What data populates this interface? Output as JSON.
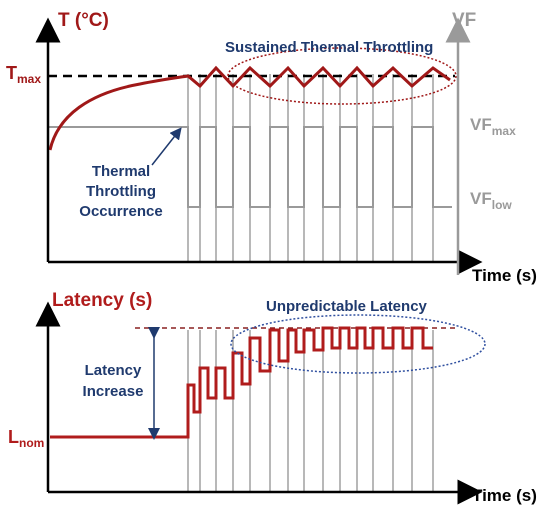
{
  "colors": {
    "temperature": "#a01818",
    "latency": "#b01c1c",
    "vf": "#9a9a9a",
    "throttle_lines": "#707070",
    "annotation_text": "#1f3a6e",
    "axis": "#000000",
    "dashed_max": "#000000",
    "dashed_latency": "#8a2020",
    "ellipse_top": "#a01818",
    "ellipse_bottom": "#3050a0"
  },
  "top_panel": {
    "y_axis_label": "T (°C)",
    "right_axis_label": "VF",
    "x_axis_label": "Time (s)",
    "t_max": {
      "main": "T",
      "sub": "max"
    },
    "vf_max": {
      "main": "VF",
      "sub": "max"
    },
    "vf_low": {
      "main": "VF",
      "sub": "low"
    },
    "sustained_label": "Sustained Thermal Throttling",
    "occurrence_label": [
      "Thermal",
      "Throttling",
      "Occurrence"
    ]
  },
  "bottom_panel": {
    "y_axis_label": "Latency (s)",
    "x_axis_label": "Time (s)",
    "l_nom": {
      "main": "L",
      "sub": "nom"
    },
    "unpredictable_label": "Unpredictable Latency",
    "increase_label": [
      "Latency",
      "Increase"
    ]
  }
}
